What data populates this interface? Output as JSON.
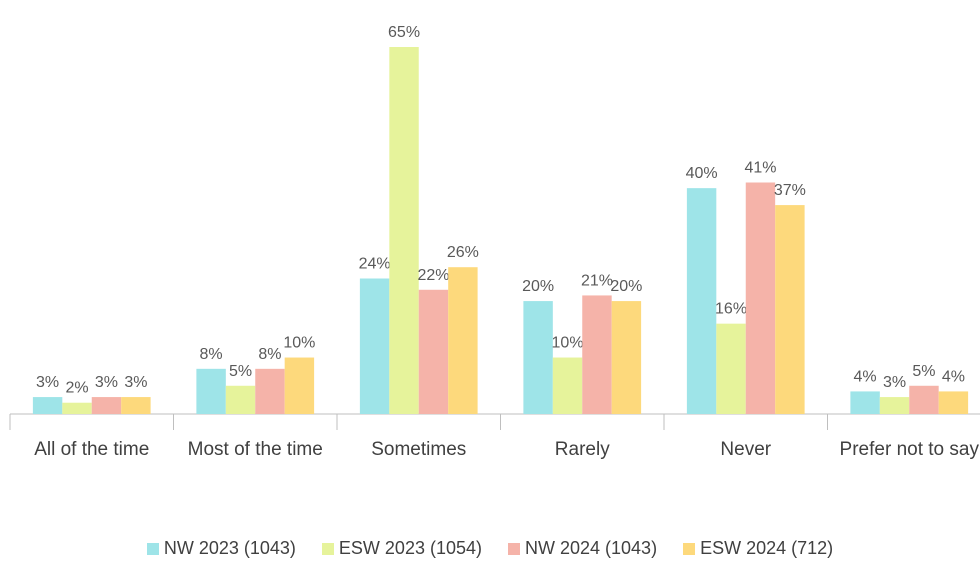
{
  "chart_data": {
    "type": "bar",
    "categories": [
      "All of the time",
      "Most of the time",
      "Sometimes",
      "Rarely",
      "Never",
      "Prefer not to say"
    ],
    "series": [
      {
        "name": "NW 2023 (1043)",
        "color": "#9ee4e8",
        "values": [
          3,
          8,
          24,
          20,
          40,
          4
        ],
        "value_labels": [
          "3%",
          "8%",
          "24%",
          "20%",
          "40%",
          "4%"
        ]
      },
      {
        "name": "ESW 2023 (1054)",
        "color": "#e6f39b",
        "values": [
          2,
          5,
          65,
          10,
          16,
          3
        ],
        "value_labels": [
          "2%",
          "5%",
          "65%",
          "10%",
          "16%",
          "3%"
        ]
      },
      {
        "name": "NW 2024 (1043)",
        "color": "#f5b3a9",
        "values": [
          3,
          8,
          22,
          21,
          41,
          5
        ],
        "value_labels": [
          "3%",
          "8%",
          "22%",
          "21%",
          "41%",
          "5%"
        ]
      },
      {
        "name": "ESW 2024 (712)",
        "color": "#fdd97c",
        "values": [
          3,
          10,
          26,
          20,
          37,
          4
        ],
        "value_labels": [
          "3%",
          "10%",
          "26%",
          "20%",
          "37%",
          "4%"
        ]
      }
    ]
  }
}
